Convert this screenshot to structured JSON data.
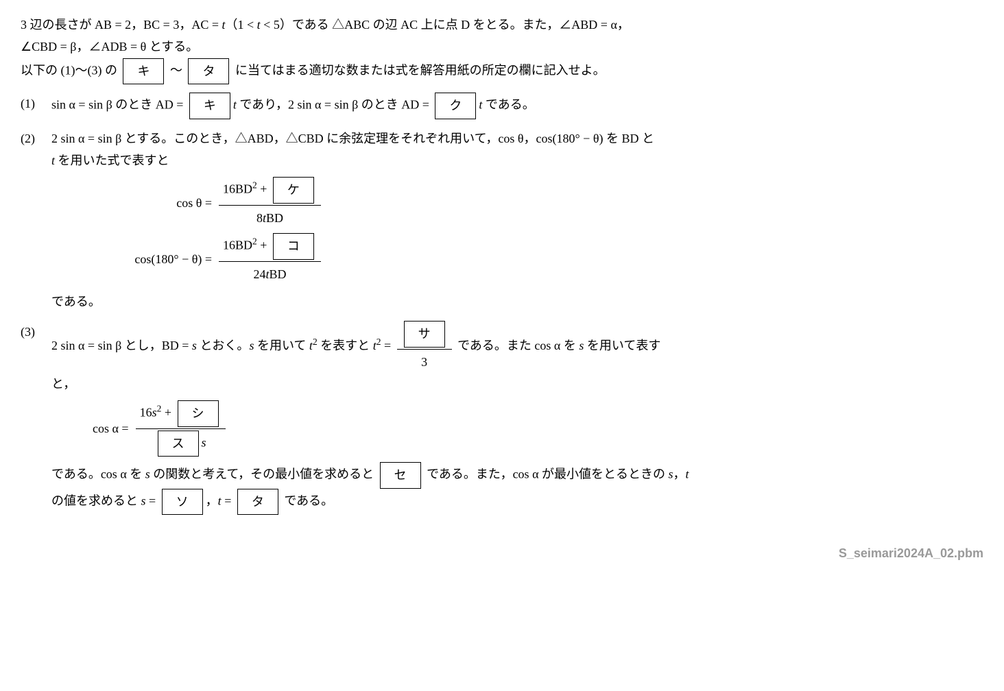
{
  "intro": {
    "line1a": "3 辺の長さが AB = 2，BC = 3，AC = ",
    "line1b": "（1 < ",
    "line1c": " < 5）である △ABC の辺 AC 上に点 D をとる。また，∠ABD = α，",
    "line2a": "∠CBD = β，∠ADB = θ とする。",
    "t": "t",
    "line3a": "以下の (1)～(3) の",
    "box_ki": "キ",
    "tilde": "～",
    "box_ta": "タ",
    "line3b": "に当てはまる適切な数または式を解答用紙の所定の欄に記入せよ。"
  },
  "p1": {
    "num": "(1)",
    "t1": "sin α = sin β のとき AD =",
    "box_ki": "キ",
    "t2": " であり，2 sin α = sin β のとき AD =",
    "box_ku": "ク",
    "t3": " である。",
    "t": "t"
  },
  "p2": {
    "num": "(2)",
    "t1": "2 sin α = sin β とする。このとき，△ABD，△CBD に余弦定理をそれぞれ用いて，cos θ，cos(180° − θ) を BD と",
    "t1b": " を用いた式で表すと",
    "t": "t",
    "eq1_lhs": "cos θ =",
    "eq1_num_a": "16BD",
    "eq1_num_b": " + ",
    "box_ke": "ケ",
    "eq1_den": "8",
    "eq1_den_b": "BD",
    "eq2_lhs": "cos(180° − θ) =",
    "eq2_num_a": "16BD",
    "eq2_num_b": " + ",
    "box_ko": "コ",
    "eq2_den": "24",
    "eq2_den_b": "BD",
    "t2": "である。",
    "sq": "2"
  },
  "p3": {
    "num": "(3)",
    "t1a": "2 sin α = sin β とし，BD = ",
    "s": "s",
    "t1b": " とおく。",
    "t1c": " を用いて ",
    "tsq": "t",
    "t1d": " を表すと ",
    "eq_lhs": " = ",
    "box_sa": "サ",
    "den3": "3",
    "t1e": " である。また cos α を ",
    "t1f": " を用いて表す",
    "t1g": "と，",
    "eq2_lhs": "cos α =",
    "eq2_num_a": "16",
    "eq2_num_b": " + ",
    "box_shi": "シ",
    "box_su": "ス",
    "t2a": "である。cos α を ",
    "t2b": " の関数と考えて，その最小値を求めると",
    "box_se": "セ",
    "t2c": "である。また，cos α が最小値をとるときの ",
    "t2d": "，",
    "t": "t",
    "t2e": "の値を求めると ",
    "eq_s": " = ",
    "box_so": "ソ",
    "comma": "，",
    "eq_t": " = ",
    "box_ta": "タ",
    "t2f": "である。",
    "sq": "2"
  },
  "footer": "S_seimari2024A_02.pbm"
}
